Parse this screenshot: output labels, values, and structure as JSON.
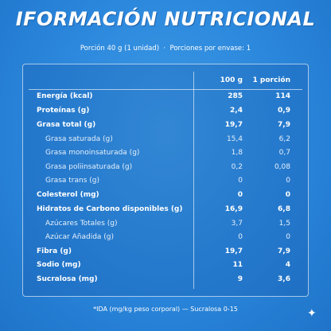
{
  "header": {
    "title": "IFORMACIÓN NUTRICIONAL",
    "serving": "Porción 40 g (1 unidad)  ·  Porciones por envase: 1"
  },
  "table": {
    "columns": [
      "100 g",
      "1 porción"
    ],
    "rows": [
      [
        "Energía (kcal)",
        "285",
        "114"
      ],
      [
        "Proteínas (g)",
        "2,4",
        "0,9"
      ],
      [
        "Grasa total (g)",
        "19,7",
        "7,9"
      ],
      [
        "Grasa saturada (g)",
        "15,4",
        "6,2"
      ],
      [
        "Grasa monoinsaturada (g)",
        "1,8",
        "0,7"
      ],
      [
        "Grasa poliinsaturada (g)",
        "0,2",
        "0,08"
      ],
      [
        "Grasa trans (g)",
        "0",
        "0"
      ],
      [
        "Colesterol (mg)",
        "0",
        "0"
      ],
      [
        "Hidratos de Carbono disponibles (g)",
        "16,9",
        "6,8"
      ],
      [
        "Azúcares Totales (g)",
        "3,7",
        "1,5"
      ],
      [
        "Azúcar Añadida (g)",
        "0",
        "0"
      ],
      [
        "Fibra (g)",
        "19,7",
        "7,9"
      ],
      [
        "Sodio (mg)",
        "11",
        "4"
      ],
      [
        "Sucralosa (mg)",
        "9",
        "3,6"
      ]
    ]
  },
  "footnote": "*IDA (mg/kg peso corporal) — Sucralosa 0-15"
}
